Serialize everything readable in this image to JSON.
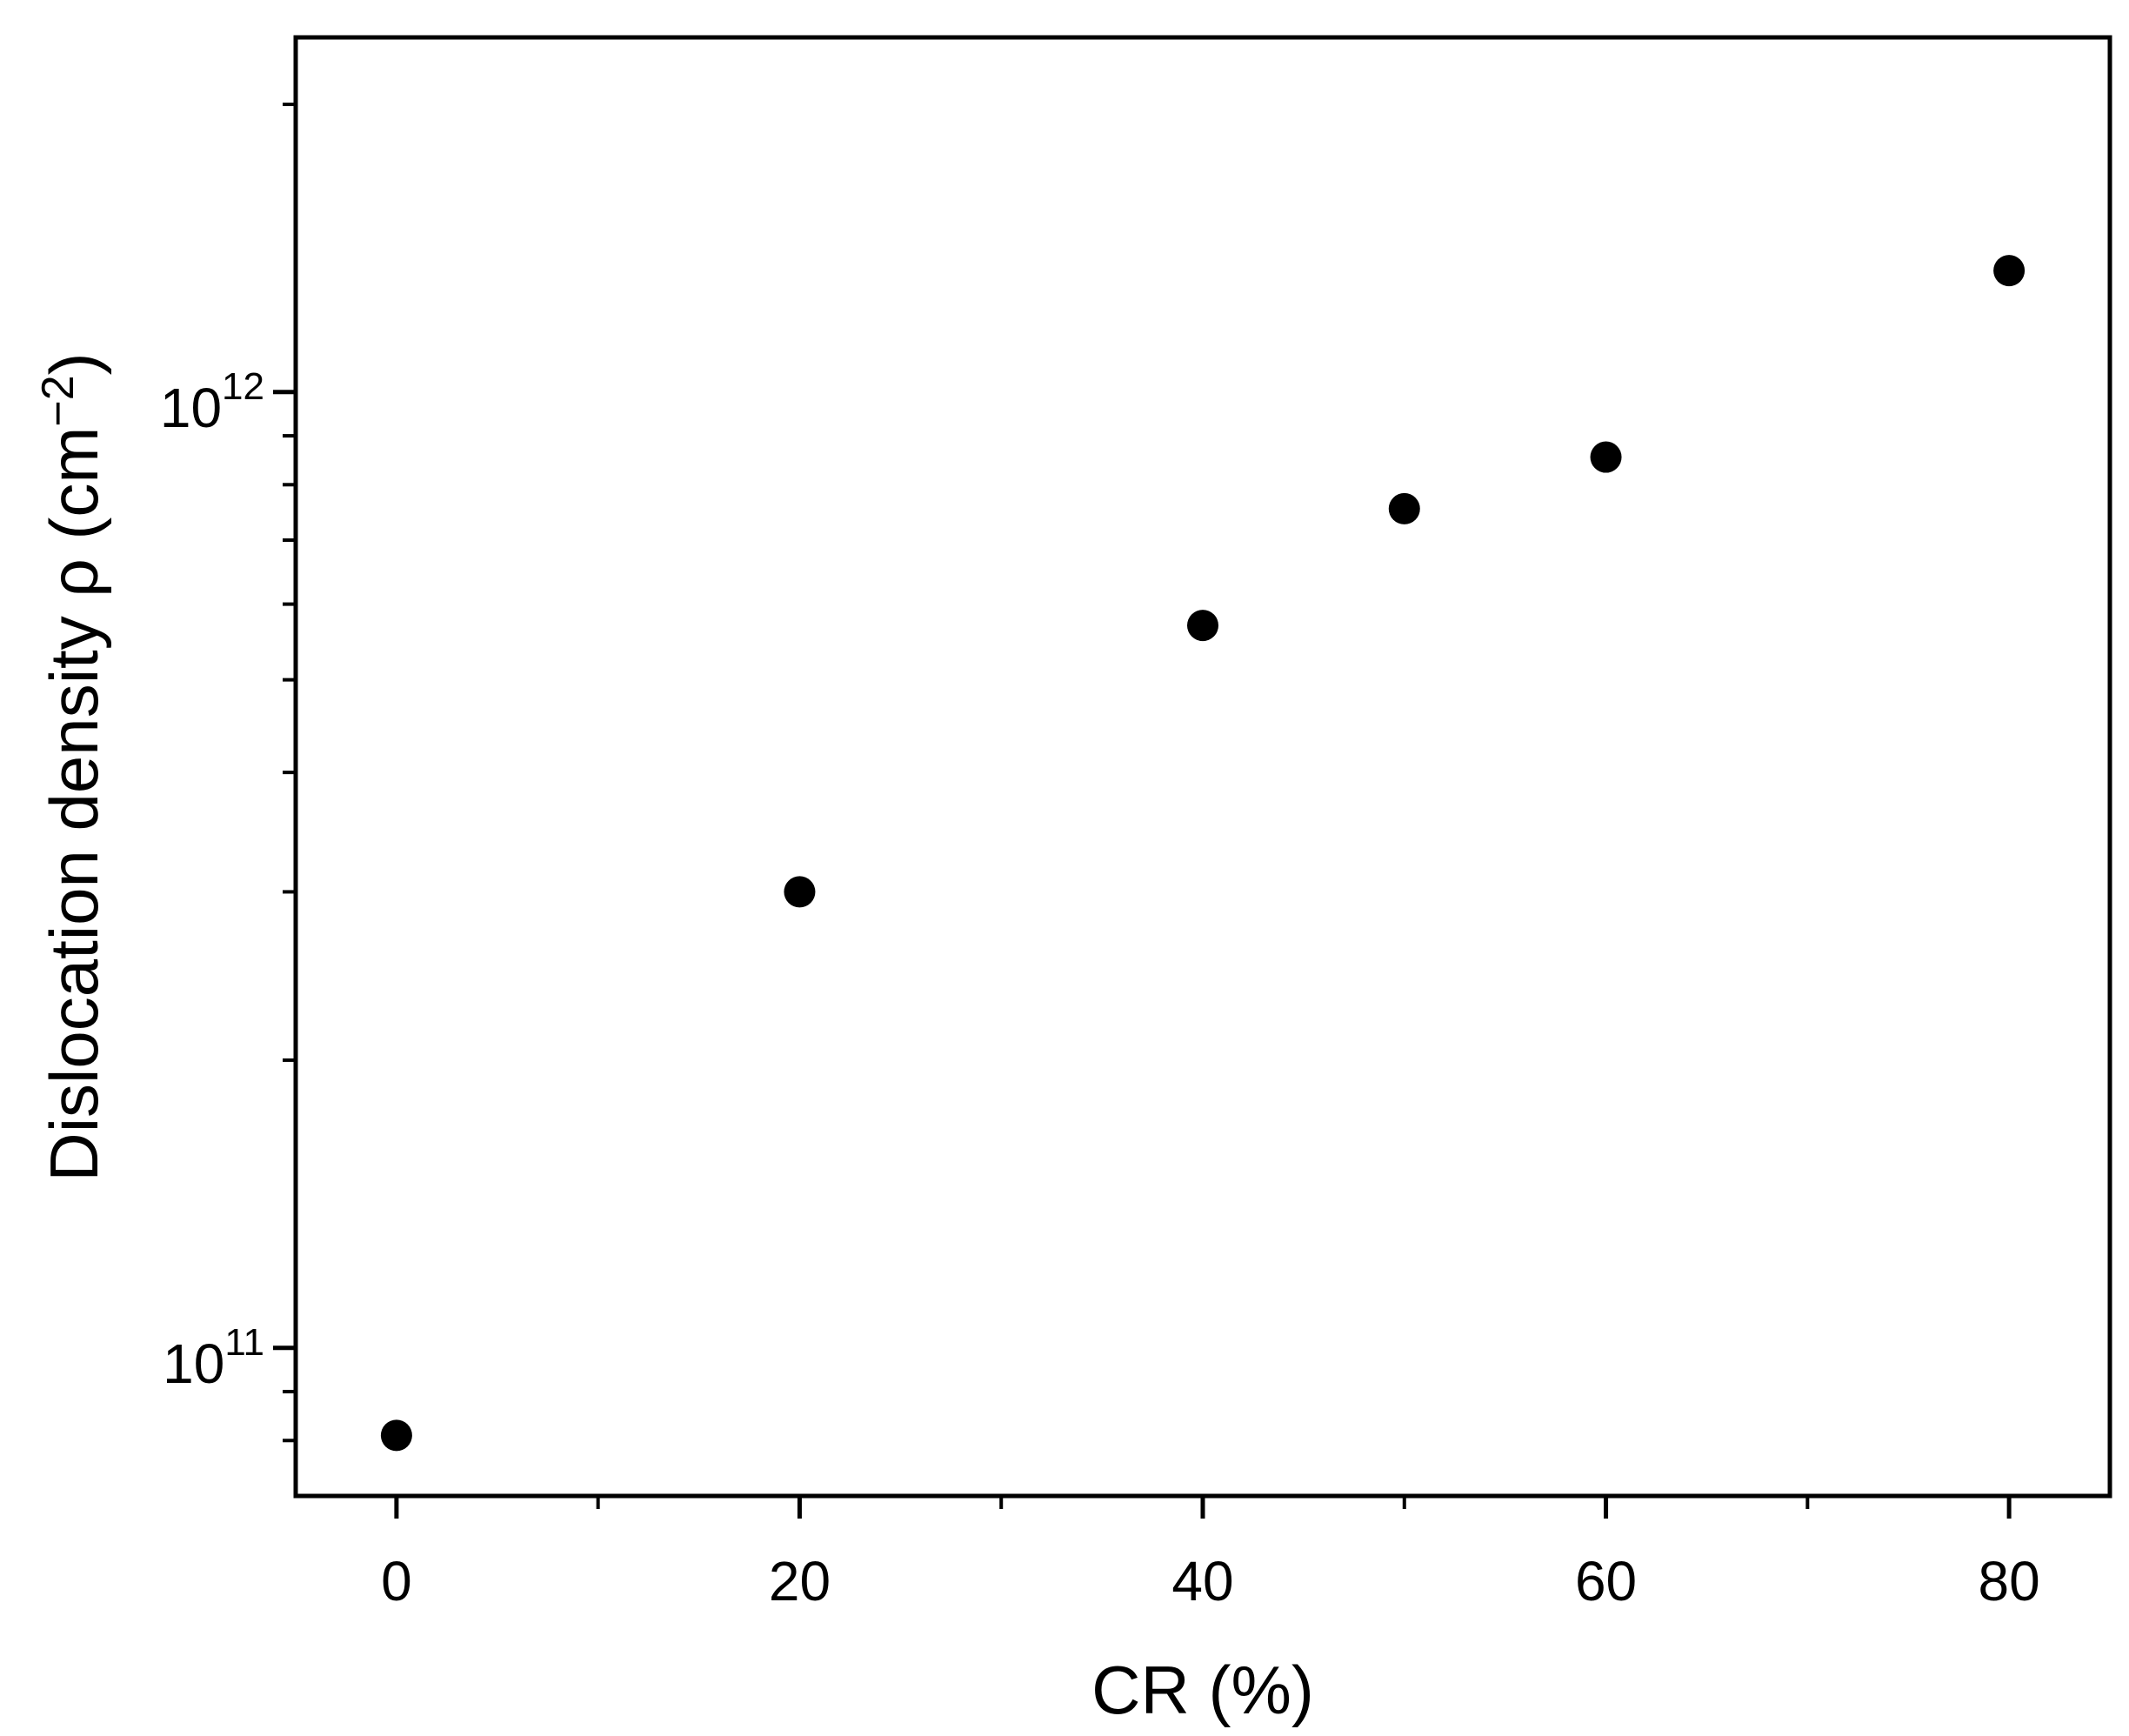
{
  "chart_data": {
    "type": "scatter",
    "title": "",
    "xlabel": "CR (%)",
    "ylabel": "Dislocation density ρ (cm",
    "ylabel_exponent": "−2",
    "ylabel_close": ")",
    "x_ticks": [
      0,
      20,
      40,
      60,
      80
    ],
    "x_minor_ticks": [
      10,
      30,
      50,
      70
    ],
    "xlim": [
      -5,
      85
    ],
    "y_scale": "log",
    "ylim": [
      70000000000.0,
      2350000000000.0
    ],
    "y_ticks": [
      {
        "value": 100000000000.0,
        "base": "10",
        "exp": "11"
      },
      {
        "value": 1000000000000.0,
        "base": "10",
        "exp": "12"
      }
    ],
    "y_minor_ticks": [
      80000000000.0,
      90000000000.0,
      200000000000.0,
      300000000000.0,
      400000000000.0,
      500000000000.0,
      600000000000.0,
      700000000000.0,
      800000000000.0,
      900000000000.0,
      2000000000000.0
    ],
    "grid": false,
    "legend": "none",
    "marker_color": "#000000",
    "series": [
      {
        "x": [
          0,
          20,
          40,
          50,
          60,
          80
        ],
        "y": [
          81000000000.0,
          300000000000.0,
          570000000000.0,
          755000000000.0,
          855000000000.0,
          1340000000000.0
        ]
      }
    ]
  }
}
